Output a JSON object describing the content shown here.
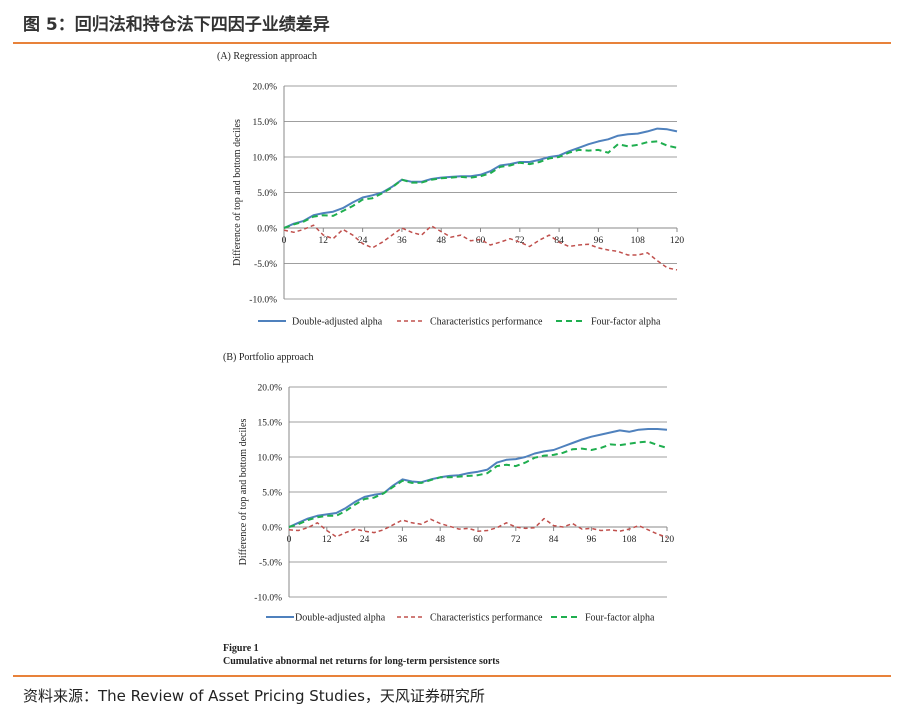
{
  "header": {
    "title": "图 5：回归法和持仓法下四因子业绩差异"
  },
  "footer": {
    "source": "资料来源：The Review of Asset Pricing Studies，天风证券研究所"
  },
  "figure": {
    "title": "Figure 1",
    "caption": "Cumulative abnormal net returns for long-term persistence sorts"
  },
  "colors": {
    "accent": "#e8823a",
    "double": "#4f81bd",
    "characteristics": "#c0504d",
    "four_factor": "#1fae4f"
  },
  "chart_data": [
    {
      "type": "line",
      "title": "(A) Regression approach",
      "xlabel": "",
      "ylabel": "Difference of top and bottom deciles",
      "xlim": [
        0,
        120
      ],
      "ylim": [
        -10,
        20
      ],
      "x_ticks": [
        "0",
        "12",
        "24",
        "36",
        "48",
        "60",
        "72",
        "84",
        "96",
        "108",
        "120"
      ],
      "y_ticks": [
        "20.0%",
        "15.0%",
        "10.0%",
        "5.0%",
        "0.0%",
        "-5.0%",
        "-10.0%"
      ],
      "x": [
        0,
        3,
        6,
        9,
        12,
        15,
        18,
        21,
        24,
        27,
        30,
        33,
        36,
        39,
        42,
        45,
        48,
        51,
        54,
        57,
        60,
        63,
        66,
        69,
        72,
        75,
        78,
        81,
        84,
        87,
        90,
        93,
        96,
        99,
        102,
        105,
        108,
        111,
        114,
        117,
        120
      ],
      "series": [
        {
          "name": "Double-adjusted alpha",
          "values": [
            0,
            0.6,
            1.0,
            1.8,
            2.1,
            2.3,
            2.8,
            3.6,
            4.3,
            4.6,
            5.0,
            5.8,
            6.8,
            6.5,
            6.5,
            6.9,
            7.1,
            7.2,
            7.3,
            7.3,
            7.5,
            8.0,
            8.8,
            9.0,
            9.3,
            9.3,
            9.6,
            10.0,
            10.2,
            10.8,
            11.3,
            11.8,
            12.2,
            12.5,
            13.0,
            13.2,
            13.3,
            13.6,
            14.0,
            13.9,
            13.6
          ]
        },
        {
          "name": "Characteristics performance",
          "values": [
            -0.3,
            -0.6,
            -0.2,
            0.4,
            -1.0,
            -1.5,
            -0.2,
            -1.0,
            -2.2,
            -2.8,
            -2.0,
            -1.0,
            0.0,
            -0.6,
            -1.0,
            0.3,
            -0.5,
            -1.3,
            -1.0,
            -1.8,
            -1.6,
            -2.4,
            -2.0,
            -1.5,
            -2.0,
            -2.6,
            -1.7,
            -1.0,
            -2.0,
            -2.6,
            -2.4,
            -2.3,
            -2.8,
            -3.1,
            -3.3,
            -3.8,
            -3.8,
            -3.5,
            -4.6,
            -5.6,
            -5.9
          ]
        },
        {
          "name": "Four-factor alpha",
          "values": [
            0,
            0.5,
            0.9,
            1.6,
            1.8,
            1.7,
            2.4,
            3.1,
            4.0,
            4.2,
            4.9,
            5.7,
            6.8,
            6.4,
            6.4,
            6.8,
            7.0,
            7.1,
            7.2,
            7.1,
            7.3,
            7.7,
            8.6,
            8.8,
            9.2,
            9.0,
            9.3,
            9.8,
            10.0,
            10.6,
            11.0,
            10.9,
            11.0,
            10.6,
            11.8,
            11.5,
            11.7,
            12.1,
            12.2,
            11.6,
            11.3
          ]
        }
      ],
      "legend": [
        "Double-adjusted alpha",
        "Characteristics performance",
        "Four-factor alpha"
      ],
      "legend_position": "bottom"
    },
    {
      "type": "line",
      "title": "(B) Portfolio approach",
      "xlabel": "",
      "ylabel": "Difference of top and bottom deciles",
      "xlim": [
        0,
        120
      ],
      "ylim": [
        -10,
        20
      ],
      "x_ticks": [
        "0",
        "12",
        "24",
        "36",
        "48",
        "60",
        "72",
        "84",
        "96",
        "108",
        "120"
      ],
      "y_ticks": [
        "20.0%",
        "15.0%",
        "10.0%",
        "5.0%",
        "0.0%",
        "-5.0%",
        "-10.0%"
      ],
      "x": [
        0,
        3,
        6,
        9,
        12,
        15,
        18,
        21,
        24,
        27,
        30,
        33,
        36,
        39,
        42,
        45,
        48,
        51,
        54,
        57,
        60,
        63,
        66,
        69,
        72,
        75,
        78,
        81,
        84,
        87,
        90,
        93,
        96,
        99,
        102,
        105,
        108,
        111,
        114,
        117,
        120
      ],
      "series": [
        {
          "name": "Double-adjusted alpha",
          "values": [
            0,
            0.6,
            1.2,
            1.6,
            1.8,
            2.0,
            2.7,
            3.6,
            4.3,
            4.6,
            4.8,
            5.9,
            6.8,
            6.5,
            6.4,
            6.8,
            7.1,
            7.3,
            7.4,
            7.7,
            7.9,
            8.2,
            9.2,
            9.6,
            9.7,
            10.0,
            10.5,
            10.8,
            11.0,
            11.5,
            12.0,
            12.5,
            12.9,
            13.2,
            13.5,
            13.8,
            13.6,
            13.9,
            14.0,
            14.0,
            13.9
          ]
        },
        {
          "name": "Characteristics performance",
          "values": [
            -0.4,
            -0.5,
            -0.1,
            0.6,
            -0.5,
            -1.4,
            -0.8,
            -0.3,
            -0.6,
            -0.8,
            -0.4,
            0.3,
            1.0,
            0.6,
            0.4,
            1.1,
            0.5,
            0.1,
            -0.3,
            -0.2,
            -0.6,
            -0.5,
            -0.1,
            0.6,
            0.0,
            -0.2,
            -0.1,
            1.2,
            0.2,
            0.0,
            0.5,
            -0.3,
            -0.2,
            -0.5,
            -0.4,
            -0.6,
            -0.3,
            0.2,
            -0.4,
            -1.0,
            -1.5
          ]
        },
        {
          "name": "Four-factor alpha",
          "values": [
            0,
            0.4,
            1.0,
            1.4,
            1.6,
            1.6,
            2.3,
            3.2,
            4.0,
            4.2,
            4.8,
            5.7,
            6.6,
            6.3,
            6.3,
            6.7,
            7.1,
            7.1,
            7.2,
            7.3,
            7.4,
            7.7,
            8.7,
            8.9,
            8.7,
            9.2,
            9.9,
            10.2,
            10.3,
            10.6,
            11.1,
            11.2,
            11.0,
            11.3,
            11.8,
            11.7,
            11.9,
            12.1,
            12.2,
            11.7,
            11.3
          ]
        }
      ],
      "legend": [
        "Double-adjusted alpha",
        "Characteristics performance",
        "Four-factor alpha"
      ],
      "legend_position": "bottom"
    }
  ]
}
